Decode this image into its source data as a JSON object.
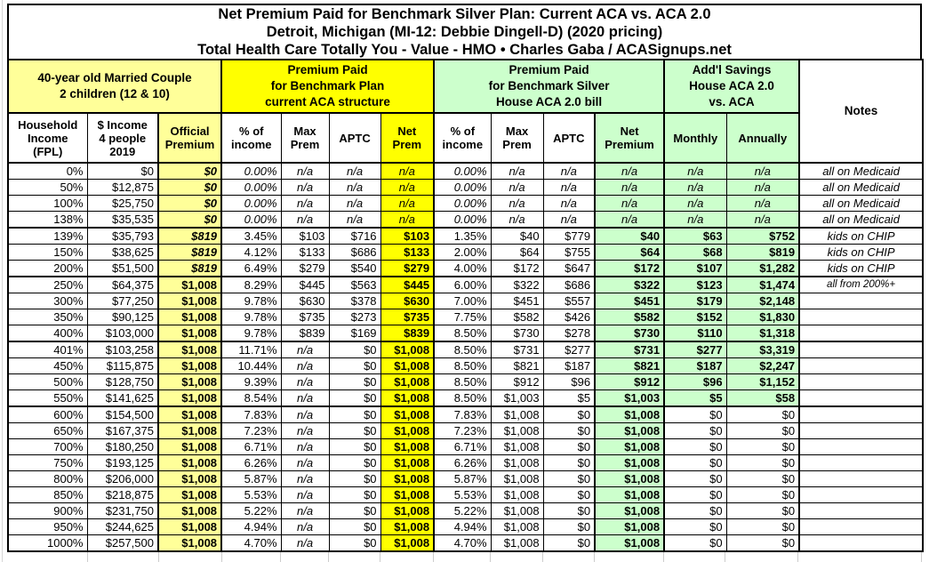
{
  "title": {
    "line1": "Net Premium Paid for Benchmark Silver Plan: Current ACA vs. ACA 2.0",
    "line2": "Detroit, Michigan (MI-12: Debbie Dingell-D) (2020 pricing)",
    "line3": "Total Health Care Totally You - Value - HMO • Charles Gaba / ACASignups.net"
  },
  "colors": {
    "bright_yellow": "#ffff00",
    "pale_yellow": "#ffff99",
    "pale_green": "#ccffcc",
    "border_black": "#000000",
    "gridline_gray": "#cccccc"
  },
  "chart_data": {
    "type": "table",
    "groups": {
      "household": "40-year old Married Couple\n2 children (12 & 10)",
      "current_aca": "Premium Paid\nfor Benchmark Plan\ncurrent ACA structure",
      "house_aca2": "Premium Paid\nfor Benchmark Silver\nHouse ACA 2.0 bill",
      "savings": "Add'l Savings\nHouse ACA 2.0\nvs. ACA",
      "notes": "Notes"
    },
    "columns": [
      "Household\nIncome\n(FPL)",
      "$ Income\n4 people\n2019",
      "Official\nPremium",
      "% of\nincome",
      "Max\nPrem",
      "APTC",
      "Net\nPrem",
      "% of\nincome",
      "Max\nPrem",
      "APTC",
      "Net\nPremium",
      "Monthly",
      "Annually"
    ],
    "rows": [
      {
        "band": "medicaid",
        "cells": [
          "0%",
          "$0",
          "$0",
          "0.00%",
          "n/a",
          "n/a",
          "n/a",
          "0.00%",
          "n/a",
          "n/a",
          "n/a",
          "n/a",
          "n/a",
          "all on Medicaid"
        ]
      },
      {
        "band": "medicaid",
        "cells": [
          "50%",
          "$12,875",
          "$0",
          "0.00%",
          "n/a",
          "n/a",
          "n/a",
          "0.00%",
          "n/a",
          "n/a",
          "n/a",
          "n/a",
          "n/a",
          "all on Medicaid"
        ]
      },
      {
        "band": "medicaid",
        "cells": [
          "100%",
          "$25,750",
          "$0",
          "0.00%",
          "n/a",
          "n/a",
          "n/a",
          "0.00%",
          "n/a",
          "n/a",
          "n/a",
          "n/a",
          "n/a",
          "all on Medicaid"
        ]
      },
      {
        "band": "medicaid",
        "cells": [
          "138%",
          "$35,535",
          "$0",
          "0.00%",
          "n/a",
          "n/a",
          "n/a",
          "0.00%",
          "n/a",
          "n/a",
          "n/a",
          "n/a",
          "n/a",
          "all on Medicaid"
        ]
      },
      {
        "band": "chip",
        "cells": [
          "139%",
          "$35,793",
          "$819",
          "3.45%",
          "$103",
          "$716",
          "$103",
          "1.35%",
          "$40",
          "$779",
          "$40",
          "$63",
          "$752",
          "kids on CHIP"
        ]
      },
      {
        "band": "chip",
        "cells": [
          "150%",
          "$38,625",
          "$819",
          "4.12%",
          "$133",
          "$686",
          "$133",
          "2.00%",
          "$64",
          "$755",
          "$64",
          "$68",
          "$819",
          "kids on CHIP"
        ]
      },
      {
        "band": "chip",
        "cells": [
          "200%",
          "$51,500",
          "$819",
          "6.49%",
          "$279",
          "$540",
          "$279",
          "4.00%",
          "$172",
          "$647",
          "$172",
          "$107",
          "$1,282",
          "kids on CHIP"
        ]
      },
      {
        "band": "mid",
        "cells": [
          "250%",
          "$64,375",
          "$1,008",
          "8.29%",
          "$445",
          "$563",
          "$445",
          "6.00%",
          "$322",
          "$686",
          "$322",
          "$123",
          "$1,474",
          "all from 200%+"
        ]
      },
      {
        "band": "mid",
        "cells": [
          "300%",
          "$77,250",
          "$1,008",
          "9.78%",
          "$630",
          "$378",
          "$630",
          "7.00%",
          "$451",
          "$557",
          "$451",
          "$179",
          "$2,148",
          ""
        ]
      },
      {
        "band": "mid",
        "cells": [
          "350%",
          "$90,125",
          "$1,008",
          "9.78%",
          "$735",
          "$273",
          "$735",
          "7.75%",
          "$582",
          "$426",
          "$582",
          "$152",
          "$1,830",
          ""
        ]
      },
      {
        "band": "mid",
        "cells": [
          "400%",
          "$103,000",
          "$1,008",
          "9.78%",
          "$839",
          "$169",
          "$839",
          "8.50%",
          "$730",
          "$278",
          "$730",
          "$110",
          "$1,318",
          ""
        ]
      },
      {
        "band": "over400",
        "cells": [
          "401%",
          "$103,258",
          "$1,008",
          "11.71%",
          "n/a",
          "$0",
          "$1,008",
          "8.50%",
          "$731",
          "$277",
          "$731",
          "$277",
          "$3,319",
          ""
        ]
      },
      {
        "band": "over400",
        "cells": [
          "450%",
          "$115,875",
          "$1,008",
          "10.44%",
          "n/a",
          "$0",
          "$1,008",
          "8.50%",
          "$821",
          "$187",
          "$821",
          "$187",
          "$2,247",
          ""
        ]
      },
      {
        "band": "over400",
        "cells": [
          "500%",
          "$128,750",
          "$1,008",
          "9.39%",
          "n/a",
          "$0",
          "$1,008",
          "8.50%",
          "$912",
          "$96",
          "$912",
          "$96",
          "$1,152",
          ""
        ]
      },
      {
        "band": "over400",
        "cells": [
          "550%",
          "$141,625",
          "$1,008",
          "8.54%",
          "n/a",
          "$0",
          "$1,008",
          "8.50%",
          "$1,003",
          "$5",
          "$1,003",
          "$5",
          "$58",
          ""
        ]
      },
      {
        "band": "flat",
        "cells": [
          "600%",
          "$154,500",
          "$1,008",
          "7.83%",
          "n/a",
          "$0",
          "$1,008",
          "7.83%",
          "$1,008",
          "$0",
          "$1,008",
          "$0",
          "$0",
          ""
        ]
      },
      {
        "band": "flat",
        "cells": [
          "650%",
          "$167,375",
          "$1,008",
          "7.23%",
          "n/a",
          "$0",
          "$1,008",
          "7.23%",
          "$1,008",
          "$0",
          "$1,008",
          "$0",
          "$0",
          ""
        ]
      },
      {
        "band": "flat",
        "cells": [
          "700%",
          "$180,250",
          "$1,008",
          "6.71%",
          "n/a",
          "$0",
          "$1,008",
          "6.71%",
          "$1,008",
          "$0",
          "$1,008",
          "$0",
          "$0",
          ""
        ]
      },
      {
        "band": "flat",
        "cells": [
          "750%",
          "$193,125",
          "$1,008",
          "6.26%",
          "n/a",
          "$0",
          "$1,008",
          "6.26%",
          "$1,008",
          "$0",
          "$1,008",
          "$0",
          "$0",
          ""
        ]
      },
      {
        "band": "flat",
        "cells": [
          "800%",
          "$206,000",
          "$1,008",
          "5.87%",
          "n/a",
          "$0",
          "$1,008",
          "5.87%",
          "$1,008",
          "$0",
          "$1,008",
          "$0",
          "$0",
          ""
        ]
      },
      {
        "band": "flat",
        "cells": [
          "850%",
          "$218,875",
          "$1,008",
          "5.53%",
          "n/a",
          "$0",
          "$1,008",
          "5.53%",
          "$1,008",
          "$0",
          "$1,008",
          "$0",
          "$0",
          ""
        ]
      },
      {
        "band": "flat",
        "cells": [
          "900%",
          "$231,750",
          "$1,008",
          "5.22%",
          "n/a",
          "$0",
          "$1,008",
          "5.22%",
          "$1,008",
          "$0",
          "$1,008",
          "$0",
          "$0",
          ""
        ]
      },
      {
        "band": "flat",
        "cells": [
          "950%",
          "$244,625",
          "$1,008",
          "4.94%",
          "n/a",
          "$0",
          "$1,008",
          "4.94%",
          "$1,008",
          "$0",
          "$1,008",
          "$0",
          "$0",
          ""
        ]
      },
      {
        "band": "flat",
        "cells": [
          "1000%",
          "$257,500",
          "$1,008",
          "4.70%",
          "n/a",
          "$0",
          "$1,008",
          "4.70%",
          "$1,008",
          "$0",
          "$1,008",
          "$0",
          "$0",
          ""
        ]
      }
    ]
  }
}
